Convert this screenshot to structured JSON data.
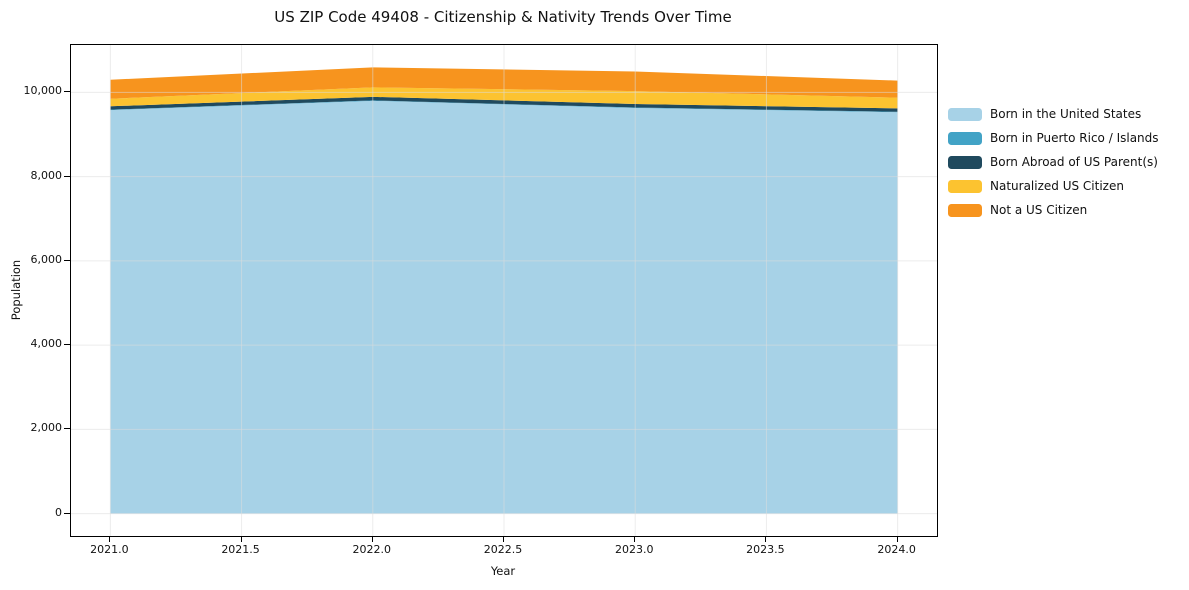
{
  "chart_data": {
    "type": "area",
    "stacked": true,
    "title": "US ZIP Code 49408 - Citizenship & Nativity Trends Over Time",
    "xlabel": "Year",
    "ylabel": "Population",
    "x": [
      2021,
      2022,
      2023,
      2024
    ],
    "series": [
      {
        "name": "Born in the United States",
        "color": "#a7d2e7",
        "values": [
          9580,
          9800,
          9630,
          9530
        ]
      },
      {
        "name": "Born in Puerto Rico / Islands",
        "color": "#42a3c6",
        "values": [
          10,
          10,
          10,
          10
        ]
      },
      {
        "name": "Born Abroad of US Parent(s)",
        "color": "#204a5e",
        "values": [
          80,
          85,
          85,
          80
        ]
      },
      {
        "name": "Naturalized US Citizen",
        "color": "#fcc330",
        "values": [
          180,
          225,
          305,
          255
        ]
      },
      {
        "name": "Not a US Citizen",
        "color": "#f7941e",
        "values": [
          450,
          475,
          465,
          405
        ]
      }
    ],
    "totals": [
      10300,
      10595,
      10495,
      10280
    ],
    "xlim": [
      2020.85,
      2024.15
    ],
    "ylim": [
      -530,
      11125
    ],
    "xticks": {
      "values": [
        2021.0,
        2021.5,
        2022.0,
        2022.5,
        2023.0,
        2023.5,
        2024.0
      ],
      "labels": [
        "2021.0",
        "2021.5",
        "2022.0",
        "2022.5",
        "2023.0",
        "2023.5",
        "2024.0"
      ]
    },
    "yticks": {
      "values": [
        0,
        2000,
        4000,
        6000,
        8000,
        10000
      ],
      "labels": [
        "0",
        "2,000",
        "4,000",
        "6,000",
        "8,000",
        "10,000"
      ]
    },
    "grid": true,
    "grid_color": "#dcdcdc",
    "legend_position": "right-outside",
    "frame_color": "#000000"
  }
}
